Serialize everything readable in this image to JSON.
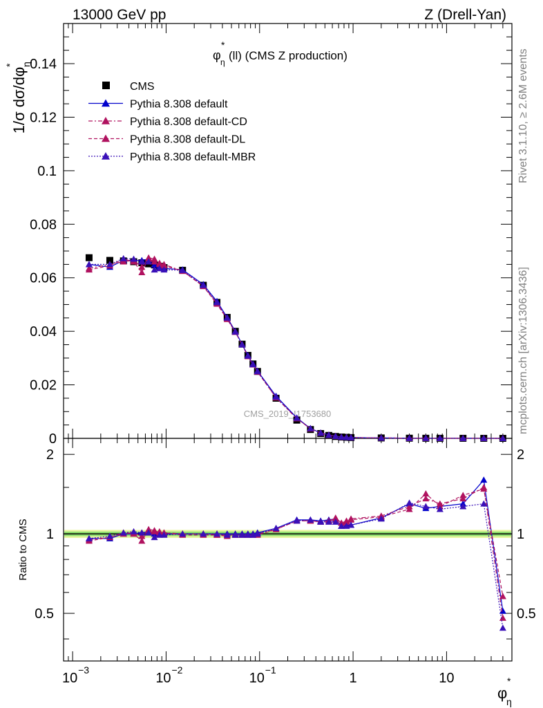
{
  "header": {
    "left": "13000 GeV pp",
    "right": "Z (Drell-Yan)"
  },
  "plot_title": "(ll) (CMS Z production)",
  "plot_title_symbol": "φ",
  "y_label_main": "1/σ dσ/dφ",
  "y_label_ratio": "Ratio to CMS",
  "x_label": "φ",
  "side_text": {
    "rivet": "Rivet 3.1.10, ≥ 2.6M events",
    "mcplots": "mcplots.cern.ch [arXiv:1306.3436]"
  },
  "watermark": "CMS_2019_I1753680",
  "colors": {
    "cms": "#000000",
    "default": "#0000cc",
    "cd": "#b0125f",
    "dl": "#b0125f",
    "mbr": "#3a10b8",
    "band_outer": "#e8f5a0",
    "band_inner": "#90e070"
  },
  "chart_data": [
    {
      "type": "scatter",
      "panel": "main",
      "x_scale": "log",
      "xlim": [
        0.0008,
        50
      ],
      "ylim": [
        0,
        0.155
      ],
      "y_ticks": [
        0,
        0.02,
        0.04,
        0.06,
        0.08,
        0.1,
        0.12,
        0.14
      ],
      "y_tick_labels": [
        "0",
        "0.02",
        "0.04",
        "0.06",
        "0.08",
        "0.1",
        "0.12",
        "0.14"
      ],
      "x": [
        0.0015,
        0.0025,
        0.0035,
        0.0045,
        0.0055,
        0.0065,
        0.0075,
        0.0085,
        0.0095,
        0.015,
        0.025,
        0.035,
        0.045,
        0.055,
        0.065,
        0.075,
        0.085,
        0.095,
        0.15,
        0.25,
        0.35,
        0.45,
        0.55,
        0.65,
        0.75,
        0.85,
        0.95,
        2,
        4,
        6,
        8.5,
        15,
        25,
        40
      ],
      "series": [
        {
          "name": "CMS",
          "marker": "square",
          "values": [
            0.0675,
            0.0665,
            0.0663,
            0.066,
            0.0656,
            0.0652,
            0.0648,
            0.0643,
            0.0638,
            0.0628,
            0.0572,
            0.0508,
            0.0452,
            0.04,
            0.0352,
            0.031,
            0.0278,
            0.025,
            0.015,
            0.0068,
            0.0033,
            0.0018,
            0.0011,
            0.0007,
            0.0005,
            0.0004,
            0.0003,
            0.00015,
            6e-05,
            4e-05,
            3e-05,
            2e-05,
            1e-05,
            5e-06
          ]
        },
        {
          "name": "Pythia 8.308 default",
          "marker": "triangle",
          "line": "solid",
          "values": [
            0.065,
            0.064,
            0.0665,
            0.0665,
            0.0665,
            0.067,
            0.0648,
            0.0643,
            0.0635,
            0.063,
            0.0575,
            0.0512,
            0.0452,
            0.04,
            0.0352,
            0.031,
            0.0278,
            0.0252,
            0.0158,
            0.0077,
            0.0037,
            0.0021,
            0.0013,
            0.0008,
            0.0005,
            0.0004,
            0.0003,
            0.00017,
            8e-05,
            5e-05,
            4e-05,
            3e-05,
            2e-05,
            3e-06
          ]
        },
        {
          "name": "Pythia 8.308 default-CD",
          "marker": "triangle",
          "line": "dashdot",
          "values": [
            0.0635,
            0.065,
            0.066,
            0.0665,
            0.064,
            0.067,
            0.066,
            0.0655,
            0.065,
            0.0625,
            0.057,
            0.0505,
            0.0448,
            0.0398,
            0.035,
            0.0308,
            0.0276,
            0.025,
            0.0152,
            0.0074,
            0.0036,
            0.002,
            0.0012,
            0.0008,
            0.0005,
            0.0004,
            0.0003,
            0.00017,
            8e-05,
            5e-05,
            4e-05,
            3e-05,
            2e-05,
            3e-06
          ]
        },
        {
          "name": "Pythia 8.308 default-DL",
          "marker": "triangle",
          "line": "dashed",
          "values": [
            0.063,
            0.0645,
            0.067,
            0.066,
            0.062,
            0.0675,
            0.067,
            0.065,
            0.0645,
            0.0625,
            0.0568,
            0.0502,
            0.0445,
            0.0397,
            0.035,
            0.0306,
            0.0275,
            0.0248,
            0.0152,
            0.0075,
            0.0036,
            0.002,
            0.0012,
            0.0008,
            0.0005,
            0.0004,
            0.0003,
            0.00017,
            8e-05,
            5e-05,
            4e-05,
            3e-05,
            2e-05,
            3e-06
          ]
        },
        {
          "name": "Pythia 8.308 default-MBR",
          "marker": "triangle",
          "line": "dotted",
          "values": [
            0.065,
            0.065,
            0.0672,
            0.067,
            0.066,
            0.066,
            0.063,
            0.0635,
            0.063,
            0.0628,
            0.0572,
            0.0508,
            0.045,
            0.0398,
            0.035,
            0.0308,
            0.0276,
            0.025,
            0.0155,
            0.0076,
            0.0037,
            0.002,
            0.0012,
            0.0008,
            0.0005,
            0.0004,
            0.0003,
            0.00017,
            8e-05,
            5e-05,
            4e-05,
            3e-05,
            2e-05,
            3e-06
          ]
        }
      ],
      "legend_position": "top-left"
    },
    {
      "type": "line",
      "panel": "ratio",
      "x_scale": "log",
      "xlim": [
        0.0008,
        50
      ],
      "ylim": [
        0.33,
        2.3
      ],
      "y_ticks": [
        0.5,
        1,
        2
      ],
      "y_tick_labels": [
        "0.5",
        "1",
        "2"
      ],
      "x_ticks": [
        0.001,
        0.01,
        0.1,
        1,
        10
      ],
      "x_tick_labels": [
        "10",
        "10",
        "10",
        "1",
        "10"
      ],
      "x_tick_exponents": [
        "−3",
        "−2",
        "−1",
        "",
        ""
      ],
      "x": [
        0.0015,
        0.0025,
        0.0035,
        0.0045,
        0.0055,
        0.0065,
        0.0075,
        0.0085,
        0.0095,
        0.015,
        0.025,
        0.035,
        0.045,
        0.055,
        0.065,
        0.075,
        0.085,
        0.095,
        0.15,
        0.25,
        0.35,
        0.45,
        0.55,
        0.65,
        0.75,
        0.85,
        0.95,
        2,
        4,
        6,
        8.5,
        15,
        25,
        40
      ],
      "series": [
        {
          "name": "Pythia 8.308 default",
          "values": [
            0.96,
            0.96,
            1.0,
            1.0,
            1.01,
            1.02,
            1.0,
            1.0,
            1.0,
            1.0,
            1.0,
            1.0,
            1.0,
            1.0,
            1.0,
            1.0,
            1.0,
            1.01,
            1.05,
            1.13,
            1.13,
            1.12,
            1.13,
            1.14,
            1.07,
            1.08,
            1.08,
            1.15,
            1.3,
            1.25,
            1.27,
            1.3,
            1.6,
            0.51
          ]
        },
        {
          "name": "Pythia 8.308 default-CD",
          "values": [
            0.95,
            0.97,
            1.0,
            1.01,
            0.98,
            1.03,
            1.02,
            1.02,
            1.01,
            1.0,
            1.0,
            0.99,
            0.99,
            0.99,
            0.99,
            0.99,
            0.99,
            1.0,
            1.04,
            1.12,
            1.12,
            1.11,
            1.12,
            1.13,
            1.1,
            1.12,
            1.14,
            1.17,
            1.27,
            1.36,
            1.3,
            1.36,
            1.5,
            0.48
          ]
        },
        {
          "name": "Pythia 8.308 default-DL",
          "values": [
            0.94,
            0.97,
            1.01,
            1.0,
            0.94,
            1.04,
            1.03,
            1.01,
            1.01,
            0.99,
            0.99,
            0.99,
            0.98,
            0.99,
            0.99,
            0.99,
            0.99,
            0.99,
            1.04,
            1.12,
            1.12,
            1.11,
            1.12,
            1.15,
            1.1,
            1.11,
            1.13,
            1.16,
            1.24,
            1.42,
            1.27,
            1.4,
            1.48,
            0.58
          ]
        },
        {
          "name": "Pythia 8.308 default-MBR",
          "values": [
            0.96,
            0.98,
            1.01,
            1.02,
            1.01,
            1.01,
            0.97,
            0.99,
            0.99,
            1.0,
            1.0,
            1.0,
            0.99,
            0.99,
            0.99,
            0.99,
            0.99,
            1.0,
            1.05,
            1.12,
            1.13,
            1.11,
            1.11,
            1.11,
            1.07,
            1.07,
            1.08,
            1.14,
            1.31,
            1.27,
            1.24,
            1.27,
            1.3,
            0.44
          ]
        }
      ],
      "reference_band": [
        0.98,
        1.02
      ]
    }
  ]
}
